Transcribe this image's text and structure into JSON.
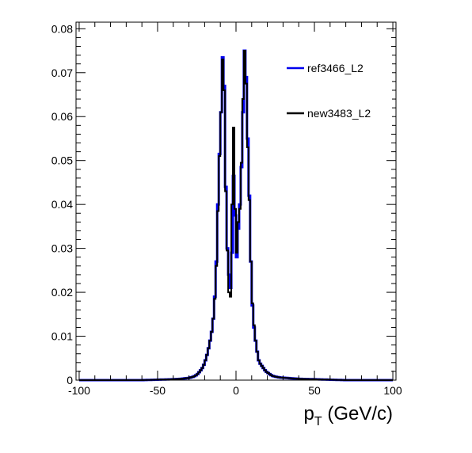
{
  "chart_data": {
    "type": "line",
    "xlabel": "p",
    "xlabel_sub": "T",
    "xlabel_unit": "(GeV/c)",
    "xlim": [
      -102,
      102
    ],
    "ylim": [
      0,
      0.0815
    ],
    "x_ticks": [
      -100,
      -50,
      0,
      50,
      100
    ],
    "x_tick_labels": [
      "-100",
      "-50",
      "0",
      "50",
      "100"
    ],
    "y_ticks": [
      0,
      0.01,
      0.02,
      0.03,
      0.04,
      0.05,
      0.06,
      0.07,
      0.08
    ],
    "y_tick_labels": [
      "0",
      "0.01",
      "0.02",
      "0.03",
      "0.04",
      "0.05",
      "0.06",
      "0.07",
      "0.08"
    ],
    "grid": false,
    "legend_position": "top-right",
    "bin_width": 1,
    "series": [
      {
        "name": "ref3466_L2",
        "color": "#0000ee",
        "points": [
          [
            -100,
            0
          ],
          [
            -90,
            0
          ],
          [
            -80,
            0
          ],
          [
            -70,
            0
          ],
          [
            -60,
            0
          ],
          [
            -50,
            0.0001
          ],
          [
            -40,
            0.0002
          ],
          [
            -35,
            0.0003
          ],
          [
            -30,
            0.0005
          ],
          [
            -27,
            0.0008
          ],
          [
            -25,
            0.0012
          ],
          [
            -23,
            0.002
          ],
          [
            -21,
            0.003
          ],
          [
            -19,
            0.005
          ],
          [
            -17,
            0.008
          ],
          [
            -15,
            0.012
          ],
          [
            -14,
            0.016
          ],
          [
            -13,
            0.022
          ],
          [
            -12,
            0.032
          ],
          [
            -11,
            0.048
          ],
          [
            -10,
            0.055
          ],
          [
            -9,
            0.067
          ],
          [
            -8,
            0.08
          ],
          [
            -7,
            0.054
          ],
          [
            -6,
            0.034
          ],
          [
            -5,
            0.026
          ],
          [
            -4,
            0.022
          ],
          [
            -3,
            0.02
          ],
          [
            -2,
            0.038
          ],
          [
            -1,
            0.055
          ],
          [
            0,
            0.02
          ],
          [
            1,
            0.036
          ],
          [
            2,
            0.033
          ],
          [
            3,
            0.047
          ],
          [
            4,
            0.05
          ],
          [
            5,
            0.072
          ],
          [
            6,
            0.078
          ],
          [
            7,
            0.06
          ],
          [
            8,
            0.05
          ],
          [
            9,
            0.034
          ],
          [
            10,
            0.02
          ],
          [
            11,
            0.014
          ],
          [
            12,
            0.01
          ],
          [
            13,
            0.008
          ],
          [
            14,
            0.005
          ],
          [
            15,
            0.004
          ],
          [
            17,
            0.003
          ],
          [
            19,
            0.002
          ],
          [
            21,
            0.0015
          ],
          [
            23,
            0.001
          ],
          [
            25,
            0.0008
          ],
          [
            28,
            0.0006
          ],
          [
            32,
            0.0005
          ],
          [
            40,
            0.0003
          ],
          [
            50,
            0.0002
          ],
          [
            60,
            0.0001
          ],
          [
            70,
            0
          ],
          [
            80,
            0
          ],
          [
            90,
            0
          ],
          [
            99,
            0
          ]
        ]
      },
      {
        "name": "new3483_L2",
        "color": "#000000",
        "points": [
          [
            -100,
            0
          ],
          [
            -90,
            0
          ],
          [
            -80,
            0
          ],
          [
            -70,
            0
          ],
          [
            -60,
            0
          ],
          [
            -50,
            0.0001
          ],
          [
            -40,
            0.0002
          ],
          [
            -35,
            0.0003
          ],
          [
            -30,
            0.0005
          ],
          [
            -27,
            0.0008
          ],
          [
            -25,
            0.0012
          ],
          [
            -23,
            0.002
          ],
          [
            -21,
            0.003
          ],
          [
            -19,
            0.005
          ],
          [
            -17,
            0.008
          ],
          [
            -15,
            0.012
          ],
          [
            -14,
            0.016
          ],
          [
            -13,
            0.021
          ],
          [
            -12,
            0.031
          ],
          [
            -11,
            0.046
          ],
          [
            -10,
            0.056
          ],
          [
            -9,
            0.066
          ],
          [
            -8,
            0.08
          ],
          [
            -7,
            0.052
          ],
          [
            -6,
            0.034
          ],
          [
            -5,
            0.025
          ],
          [
            -4,
            0.015
          ],
          [
            -3,
            0.023
          ],
          [
            -2,
            0.057
          ],
          [
            -1,
            0.058
          ],
          [
            0,
            0.02
          ],
          [
            1,
            0.038
          ],
          [
            2,
            0.034
          ],
          [
            3,
            0.044
          ],
          [
            4,
            0.055
          ],
          [
            5,
            0.073
          ],
          [
            6,
            0.077
          ],
          [
            7,
            0.058
          ],
          [
            8,
            0.048
          ],
          [
            9,
            0.034
          ],
          [
            10,
            0.02
          ],
          [
            11,
            0.015
          ],
          [
            12,
            0.01
          ],
          [
            13,
            0.008
          ],
          [
            14,
            0.005
          ],
          [
            15,
            0.004
          ],
          [
            17,
            0.003
          ],
          [
            19,
            0.002
          ],
          [
            21,
            0.0015
          ],
          [
            23,
            0.001
          ],
          [
            25,
            0.0008
          ],
          [
            28,
            0.0006
          ],
          [
            32,
            0.0005
          ],
          [
            40,
            0.0003
          ],
          [
            50,
            0.0002
          ],
          [
            60,
            0.0001
          ],
          [
            70,
            0
          ],
          [
            80,
            0
          ],
          [
            90,
            0
          ],
          [
            99,
            0
          ]
        ]
      }
    ]
  }
}
